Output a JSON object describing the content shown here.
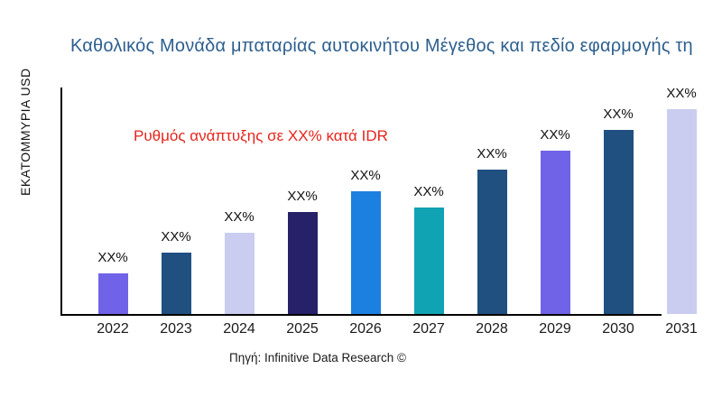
{
  "chart_data": {
    "type": "bar",
    "title": "Καθολικός Μονάδα μπαταρίας αυτοκινήτου Μέγεθος και πεδίο εφαρμογής τη",
    "ylabel": "ΕΚΑΤΟΜΜΥΡΙΑ USD",
    "xlabel": "",
    "annotation": "Ρυθμός ανάπτυξης σε XX% κατά IDR",
    "annotation_color": "#e6251c",
    "source": "Πηγή: Infinitive Data Research ©",
    "categories": [
      "2022",
      "2023",
      "2024",
      "2025",
      "2026",
      "2027",
      "2028",
      "2029",
      "2030",
      "2031"
    ],
    "values_relative": [
      45,
      68,
      90,
      113,
      136,
      118,
      160,
      181,
      204,
      227
    ],
    "bar_value_label": "XX%",
    "bar_colors": [
      "#7063e8",
      "#1f5080",
      "#cacdef",
      "#262168",
      "#1b80e0",
      "#10a3b3",
      "#1f5080",
      "#7063e8",
      "#1f5080",
      "#cacdef"
    ],
    "title_color": "#2d5f8e",
    "axis_color": "#000000",
    "grid": "off",
    "legend": "none"
  }
}
